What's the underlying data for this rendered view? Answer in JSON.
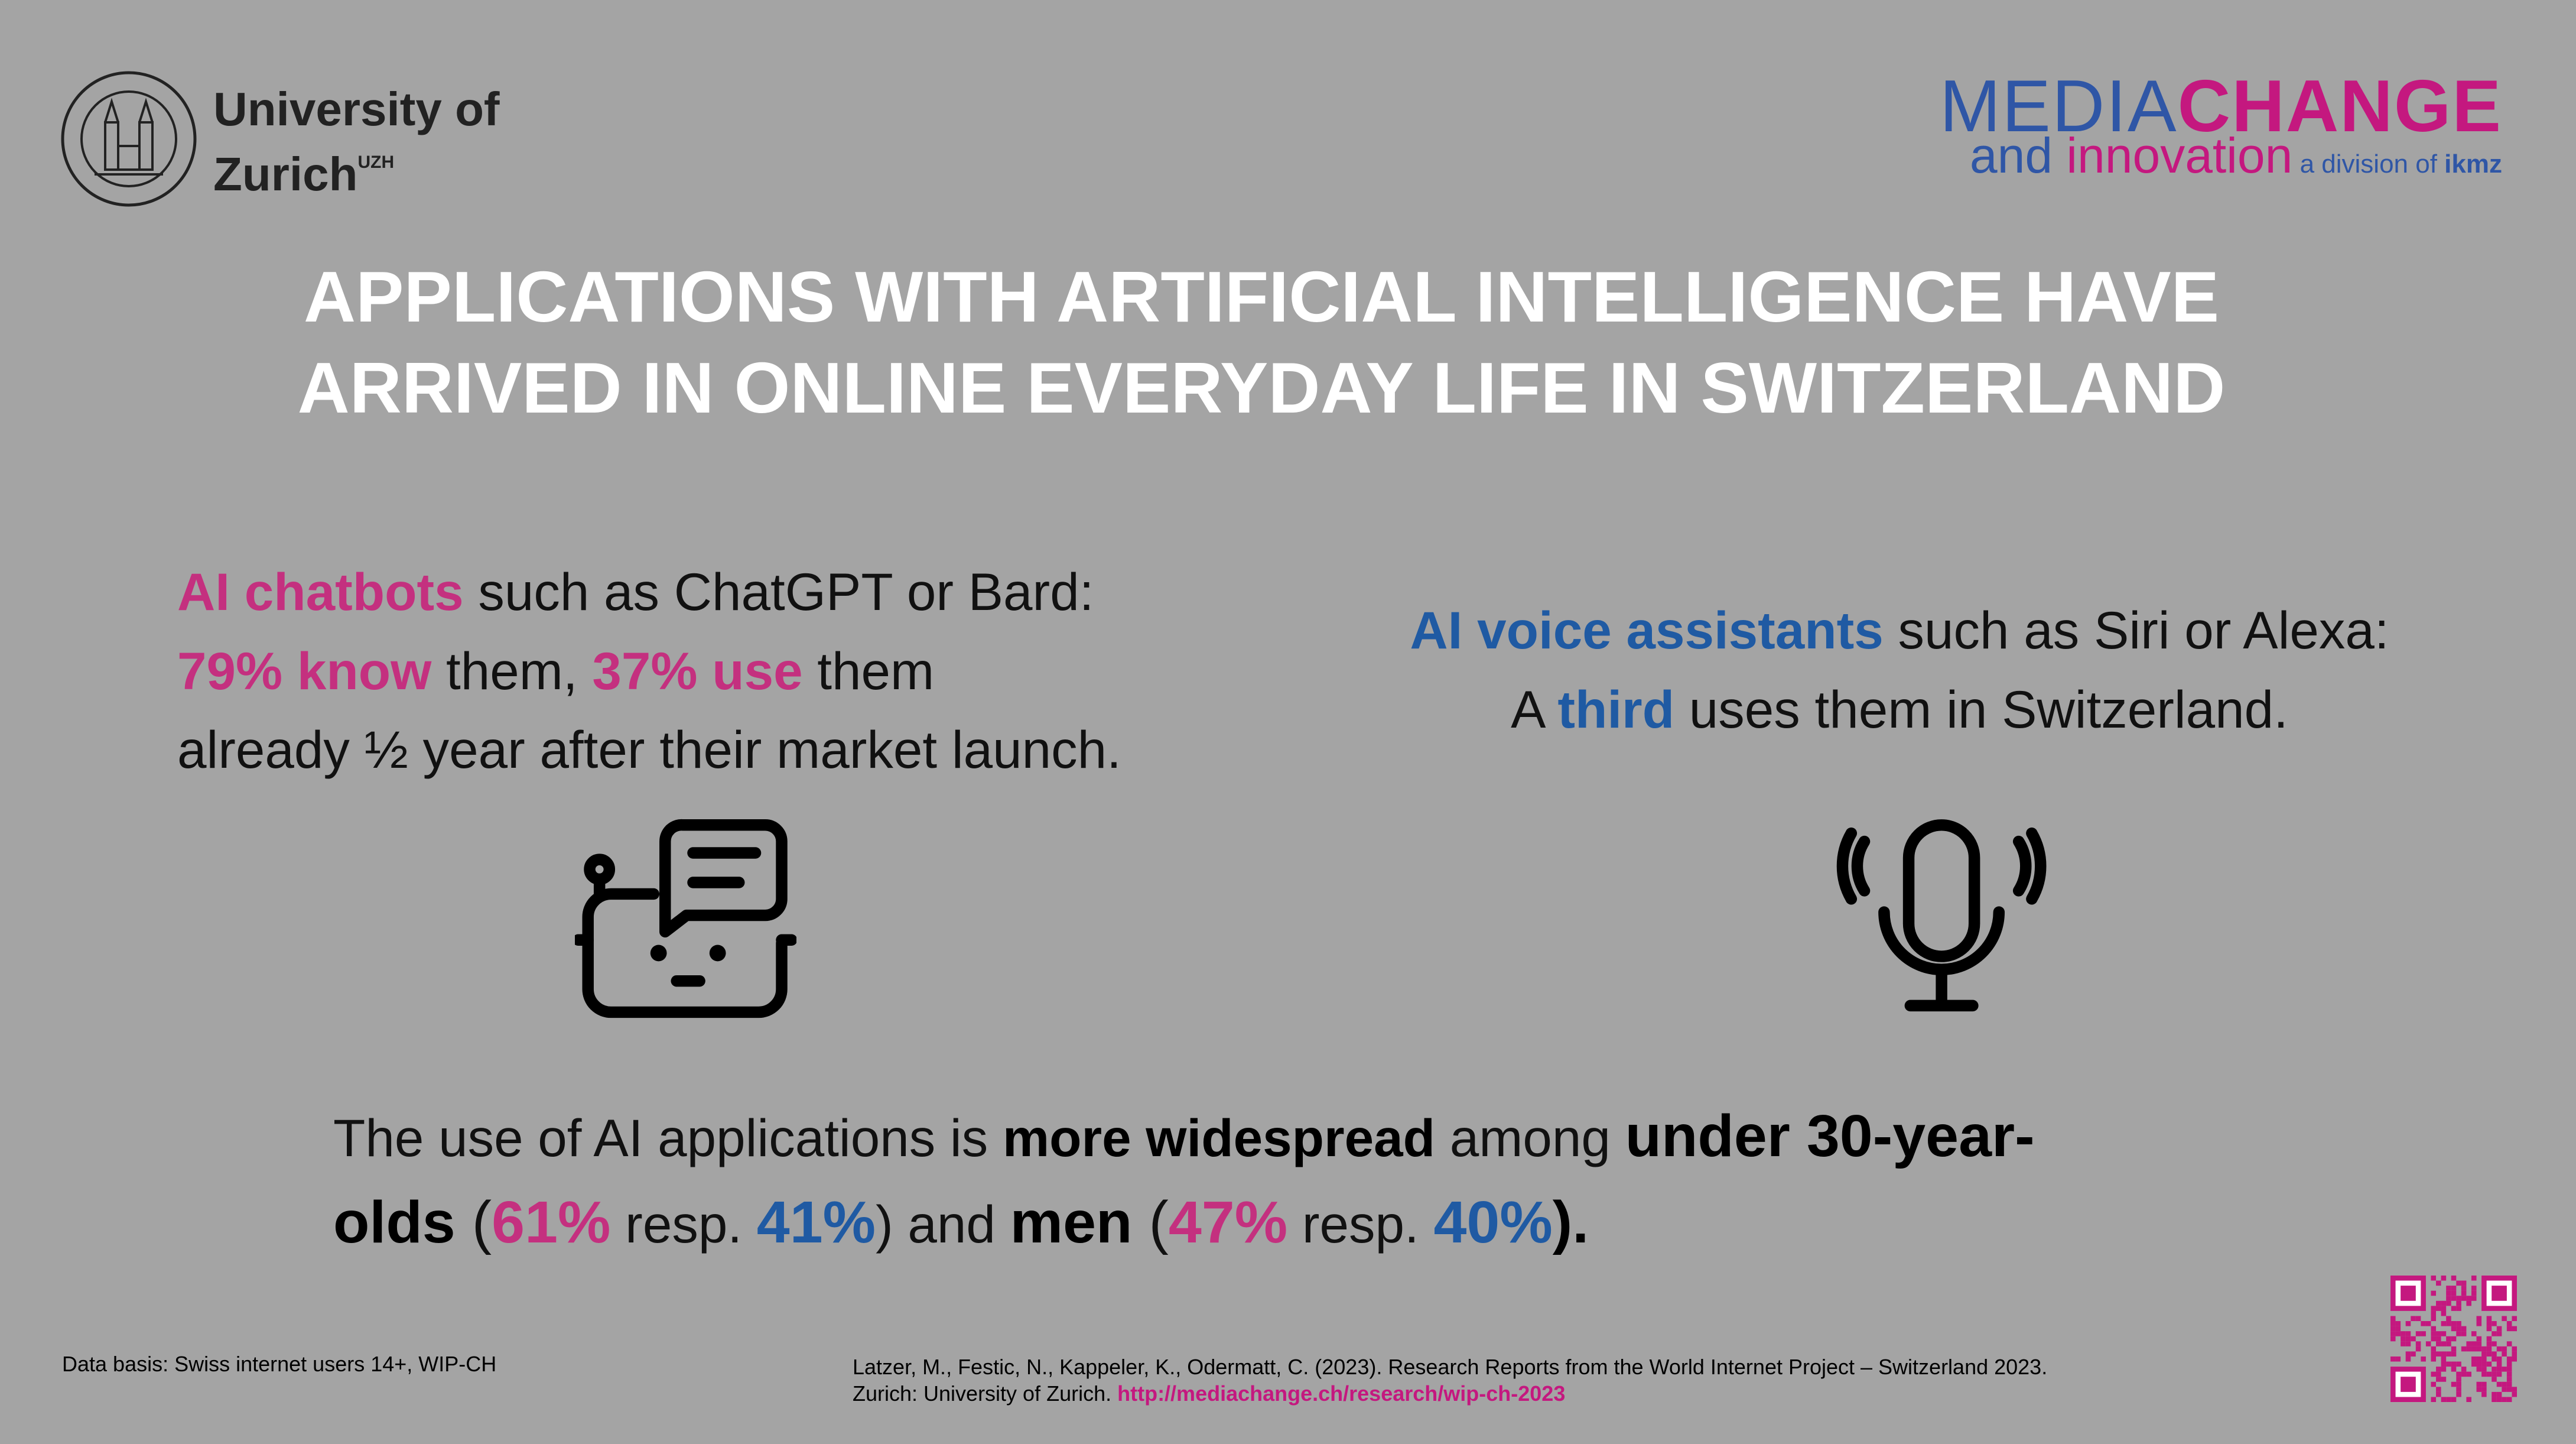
{
  "header": {
    "university": "University of",
    "university_line2": "Zurich",
    "uzh": "UZH",
    "brand_media": "MEDIA",
    "brand_change": "CHANGE",
    "brand_and": "and ",
    "brand_innovation": "innovation",
    "brand_division": "a division of ",
    "brand_ikmz": "ikmz"
  },
  "title": [
    "APPLICATIONS WITH ARTIFICIAL INTELLIGENCE HAVE",
    "ARRIVED IN ONLINE EVERYDAY LIFE IN SWITZERLAND"
  ],
  "chatbots": {
    "lines": [
      [
        {
          "text": "AI chatbots",
          "style": "pink"
        },
        {
          "text": " such as ChatGPT or Bard:",
          "style": "plain"
        }
      ],
      [
        {
          "text": "79% know",
          "style": "pink"
        },
        {
          "text": " them, ",
          "style": "plain"
        },
        {
          "text": "37% use",
          "style": "pink"
        },
        {
          "text": " them",
          "style": "plain"
        }
      ],
      [
        {
          "text": "already ½ year after their market launch.",
          "style": "plain"
        }
      ]
    ]
  },
  "voice": {
    "lines": [
      [
        {
          "text": "AI voice assistants",
          "style": "blue"
        },
        {
          "text": " such as Siri or Alexa:",
          "style": "plain"
        }
      ],
      [
        {
          "text": "A ",
          "style": "plain"
        },
        {
          "text": "third",
          "style": "blue"
        },
        {
          "text": " uses them in Switzerland.",
          "style": "plain"
        }
      ]
    ]
  },
  "summary": {
    "lines": [
      [
        {
          "text": "The use of AI applications is ",
          "style": "plain"
        },
        {
          "text": "more widespread",
          "style": "bold"
        },
        {
          "text": " among ",
          "style": "plain"
        },
        {
          "text": "under 30-year-",
          "style": "bold big"
        }
      ],
      [
        {
          "text": "olds",
          "style": "bold big"
        },
        {
          "text": " (",
          "style": "plain big"
        },
        {
          "text": "61%",
          "style": "pink big"
        },
        {
          "text": " resp. ",
          "style": "plain"
        },
        {
          "text": "41%",
          "style": "blue big"
        },
        {
          "text": ") and ",
          "style": "plain"
        },
        {
          "text": "men",
          "style": "bold big"
        },
        {
          "text": " (",
          "style": "plain big"
        },
        {
          "text": "47%",
          "style": "pink big"
        },
        {
          "text": " resp. ",
          "style": "plain"
        },
        {
          "text": "40%",
          "style": "blue big"
        },
        {
          "text": ").",
          "style": "bold big"
        }
      ]
    ]
  },
  "footer": {
    "data_basis": "Data basis: Swiss internet users 14+, WIP-CH",
    "citation": [
      "Latzer, M., Festic, N., Kappeler, K., Odermatt, C. (2023). Research Reports from the World Internet Project – Switzerland 2023.",
      "Zurich: University of Zurich. "
    ],
    "link": "http://mediachange.ch/research/wip-ch-2023"
  }
}
